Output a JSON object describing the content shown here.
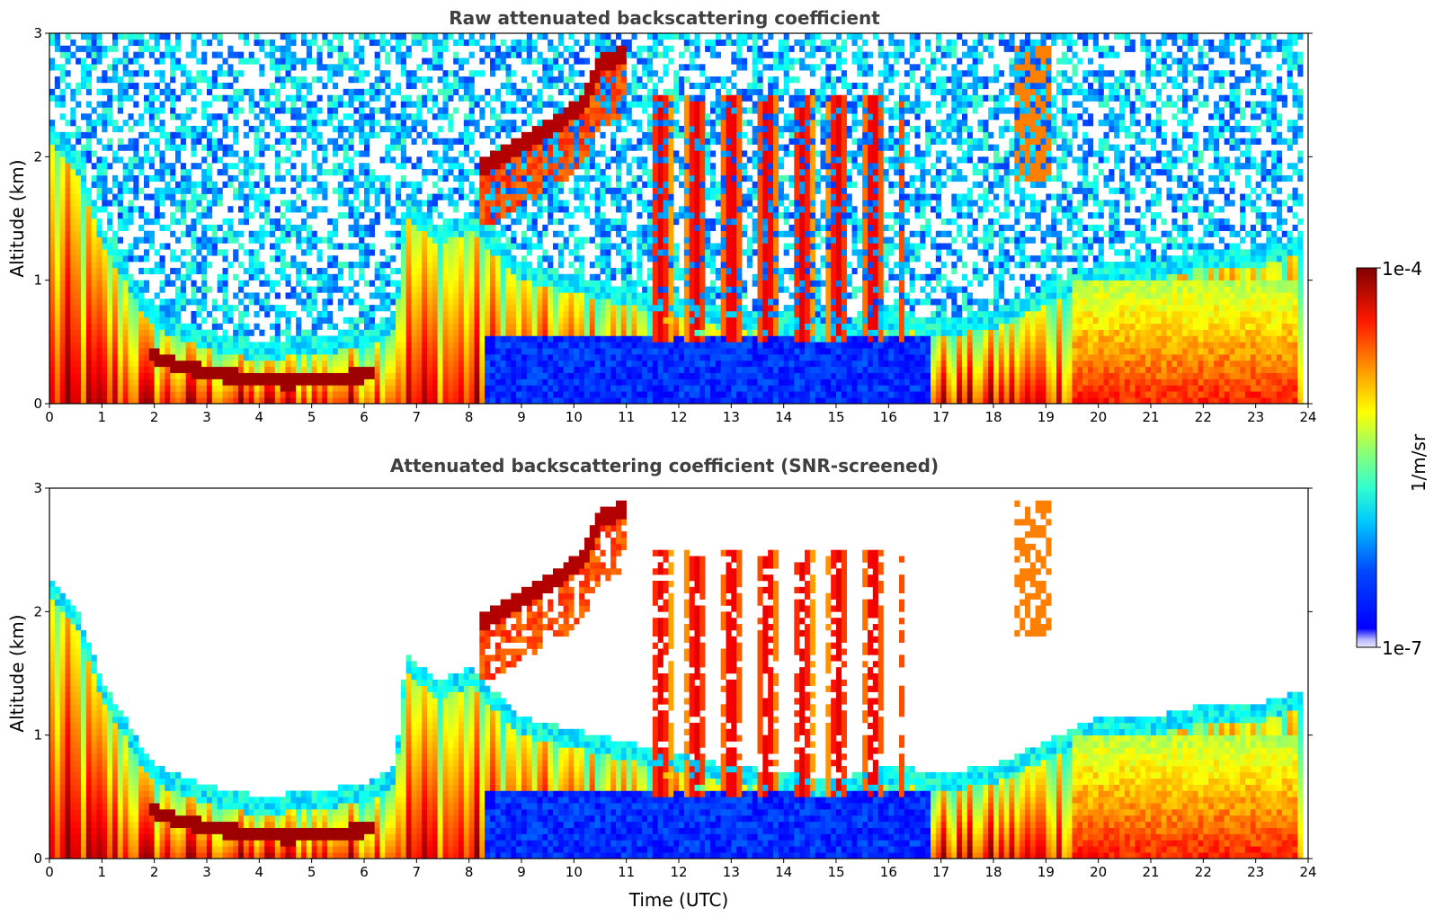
{
  "chart_data": [
    {
      "type": "heatmap",
      "title": "Raw attenuated backscattering coefficient",
      "xlabel": "",
      "ylabel": "Altitude (km)",
      "xlim": [
        0,
        24
      ],
      "ylim": [
        0,
        3
      ],
      "x_ticks": [
        "0",
        "1",
        "2",
        "3",
        "4",
        "5",
        "6",
        "7",
        "8",
        "9",
        "10",
        "11",
        "12",
        "13",
        "14",
        "15",
        "16",
        "17",
        "18",
        "19",
        "20",
        "21",
        "22",
        "23",
        "24"
      ],
      "y_ticks": [
        "0",
        "1",
        "2",
        "3"
      ],
      "colormap": "jet",
      "scale": "log",
      "screened": false
    },
    {
      "type": "heatmap",
      "title": "Attenuated backscattering coefficient (SNR-screened)",
      "xlabel": "Time (UTC)",
      "ylabel": "Altitude (km)",
      "xlim": [
        0,
        24
      ],
      "ylim": [
        0,
        3
      ],
      "x_ticks": [
        "0",
        "1",
        "2",
        "3",
        "4",
        "5",
        "6",
        "7",
        "8",
        "9",
        "10",
        "11",
        "12",
        "13",
        "14",
        "15",
        "16",
        "17",
        "18",
        "19",
        "20",
        "21",
        "22",
        "23",
        "24"
      ],
      "y_ticks": [
        "0",
        "1",
        "2",
        "3"
      ],
      "colormap": "jet",
      "scale": "log",
      "screened": true
    }
  ],
  "colorbar": {
    "label": "1/m/sr",
    "min_label": "1e-7",
    "max_label": "1e-4",
    "min": 1e-07,
    "max": 0.0001,
    "scale": "log",
    "colormap": "jet"
  },
  "features": {
    "aerosol_layer_top_km": [
      [
        0,
        2.1
      ],
      [
        0.5,
        1.9
      ],
      [
        1,
        1.3
      ],
      [
        2,
        0.6
      ],
      [
        3,
        0.45
      ],
      [
        4,
        0.35
      ],
      [
        5,
        0.4
      ],
      [
        6,
        0.45
      ],
      [
        6.6,
        0.6
      ],
      [
        6.8,
        1.5
      ],
      [
        7.4,
        1.3
      ],
      [
        8,
        1.4
      ],
      [
        9,
        1.0
      ],
      [
        10,
        0.9
      ],
      [
        11,
        0.8
      ],
      [
        12,
        0.7
      ],
      [
        13,
        0.6
      ],
      [
        14,
        0.55
      ],
      [
        15,
        0.5
      ],
      [
        16,
        0.6
      ],
      [
        17,
        0.55
      ],
      [
        18,
        0.6
      ],
      [
        19,
        0.8
      ],
      [
        20,
        1.0
      ],
      [
        21,
        1.0
      ],
      [
        22,
        1.1
      ],
      [
        23,
        1.1
      ],
      [
        23.8,
        1.2
      ]
    ],
    "residual_layer": [
      [
        1.9,
        0.4
      ],
      [
        2.5,
        0.3
      ],
      [
        3.5,
        0.22
      ],
      [
        4.5,
        0.18
      ],
      [
        5.5,
        0.2
      ],
      [
        6.2,
        0.25
      ]
    ],
    "cloud_band": [
      [
        8.2,
        1.9
      ],
      [
        8.6,
        2.0
      ],
      [
        9.2,
        2.15
      ],
      [
        9.8,
        2.3
      ],
      [
        10.2,
        2.45
      ],
      [
        10.5,
        2.75
      ],
      [
        10.8,
        2.8
      ],
      [
        11,
        2.85
      ]
    ]
  },
  "colors": {
    "jet_stops": [
      "#00007f",
      "#0000ff",
      "#007fff",
      "#00ffff",
      "#7fff7f",
      "#ffff00",
      "#ff7f00",
      "#ff0000",
      "#7f0000"
    ]
  }
}
